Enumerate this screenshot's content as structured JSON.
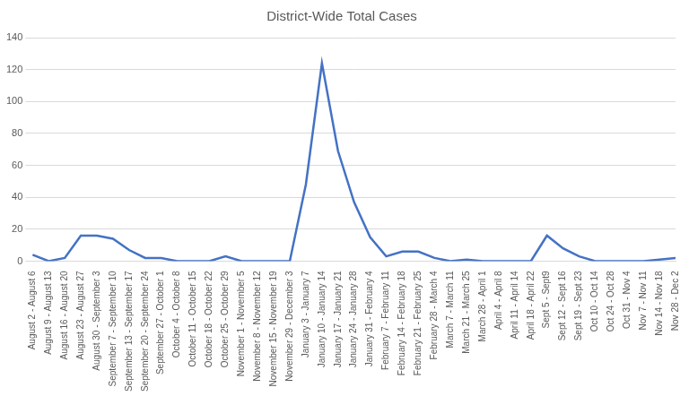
{
  "chart_data": {
    "type": "line",
    "title": "District-Wide Total Cases",
    "categories": [
      "August 2 - August 6",
      "August 9 - August 13",
      "August 16 - August 20",
      "August 23 - August 27",
      "August 30 - September 3",
      "September 7 - September 10",
      "September 13 - September 17",
      "September 20 - September 24",
      "September 27 - October 1",
      "October 4 - October 8",
      "October 11 - October 15",
      "October 18 - October 22",
      "October 25 - October 29",
      "November 1 - November 5",
      "November 8 - November 12",
      "November 15 - November 19",
      "November 29 - December 3",
      "January 3 - January 7",
      "January 10 - January 14",
      "January 17 - January 21",
      "January 24 - January 28",
      "January 31 - February 4",
      "February 7 - February 11",
      "February 14 - February 18",
      "February 21 - February 25",
      "February 28 - March 4",
      "March 7 - March 11",
      "March 21 - March 25",
      "March 28 - April 1",
      "April 4 - April 8",
      "April 11 - April 14",
      "April 18 - April 22",
      "Sept 5 - Sept9",
      "Sept 12 - Sept 16",
      "Sept 19 - Sept 23",
      "Oct 10 - Oct 14",
      "Oct 24 - Oct 28",
      "Oct 31 - Nov 4",
      "Nov 7 - Nov 11",
      "Nov 14 - Nov 18",
      "Nov 28 - Dec 2"
    ],
    "values": [
      4,
      0,
      2,
      16,
      16,
      14,
      7,
      2,
      2,
      0,
      0,
      0,
      3,
      0,
      0,
      0,
      0,
      48,
      124,
      69,
      37,
      15,
      3,
      6,
      6,
      2,
      0,
      1,
      0,
      0,
      0,
      0,
      16,
      8,
      3,
      0,
      0,
      0,
      0,
      1,
      2
    ],
    "color": "#4472c4",
    "ylim": [
      0,
      140
    ],
    "yticks": [
      0,
      20,
      40,
      60,
      80,
      100,
      120,
      140
    ],
    "grid": true
  }
}
